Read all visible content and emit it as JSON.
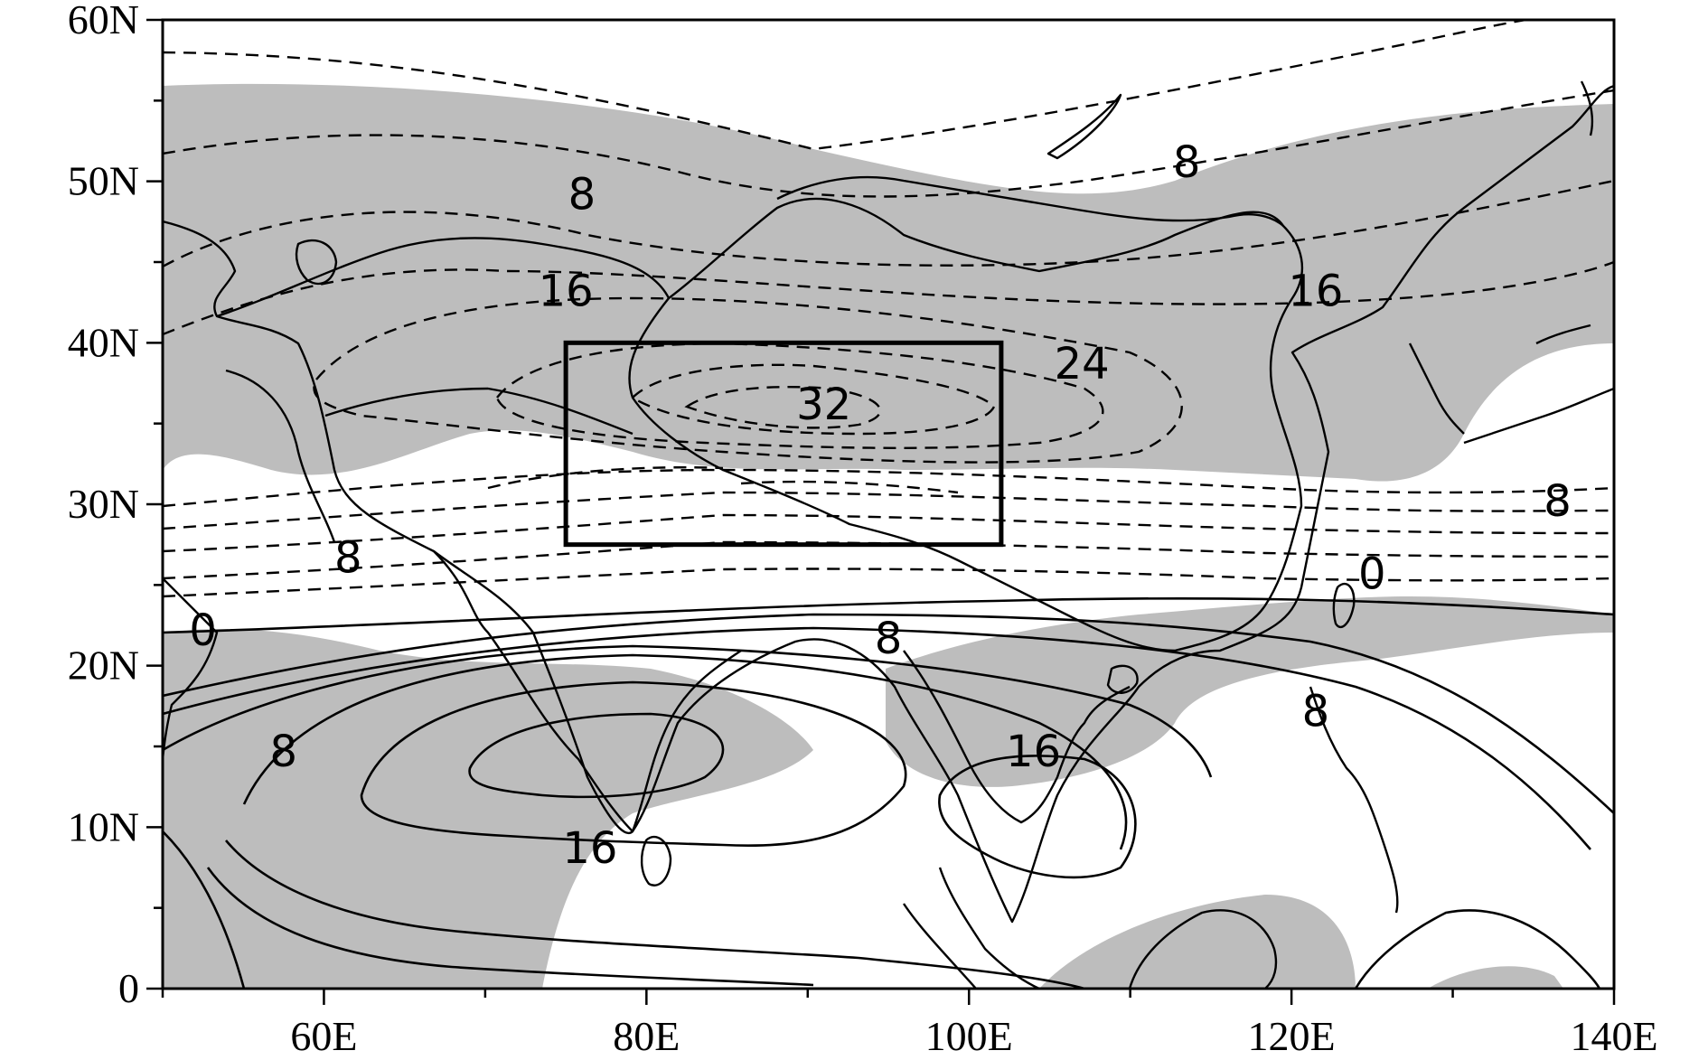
{
  "map": {
    "extent": {
      "lon": [
        50,
        140
      ],
      "lat": [
        0,
        60
      ]
    },
    "y_ticks": [
      {
        "lat": 60,
        "label": "60N"
      },
      {
        "lat": 50,
        "label": "50N"
      },
      {
        "lat": 40,
        "label": "40N"
      },
      {
        "lat": 30,
        "label": "30N"
      },
      {
        "lat": 20,
        "label": "20N"
      },
      {
        "lat": 10,
        "label": "10N"
      },
      {
        "lat": 0,
        "label": "0"
      }
    ],
    "x_ticks": [
      {
        "lon": 60,
        "label": "60E"
      },
      {
        "lon": 80,
        "label": "80E"
      },
      {
        "lon": 100,
        "label": "100E"
      },
      {
        "lon": 120,
        "label": "120E"
      },
      {
        "lon": 140,
        "label": "140E"
      }
    ],
    "minor_lon_ticks": [
      50,
      70,
      90,
      110,
      130
    ],
    "minor_lat_ticks": [
      5,
      15,
      25,
      35,
      45,
      55
    ],
    "box_region": {
      "lon": [
        75,
        102
      ],
      "lat": [
        27.5,
        40
      ]
    },
    "contour_labels": [
      {
        "text": "8",
        "lon": 76,
        "lat": 49
      },
      {
        "text": "8",
        "lon": 113.5,
        "lat": 51
      },
      {
        "text": "16",
        "lon": 75,
        "lat": 43
      },
      {
        "text": "16",
        "lon": 121.5,
        "lat": 43
      },
      {
        "text": "24",
        "lon": 107,
        "lat": 38.5
      },
      {
        "text": "32",
        "lon": 91,
        "lat": 36
      },
      {
        "text": "8",
        "lon": 136.5,
        "lat": 30
      },
      {
        "text": "8",
        "lon": 61.5,
        "lat": 26.5
      },
      {
        "text": "0",
        "lon": 52.5,
        "lat": 22
      },
      {
        "text": "0",
        "lon": 125,
        "lat": 25.5
      },
      {
        "text": "8",
        "lon": 95,
        "lat": 21.5
      },
      {
        "text": "8",
        "lon": 121.5,
        "lat": 17
      },
      {
        "text": "8",
        "lon": 57.5,
        "lat": 14.5
      },
      {
        "text": "16",
        "lon": 104,
        "lat": 14.5
      },
      {
        "text": "16",
        "lon": 76.5,
        "lat": 8.5
      }
    ]
  },
  "style": {
    "shading_color": "#bdbdbd",
    "line_color": "#000000"
  }
}
